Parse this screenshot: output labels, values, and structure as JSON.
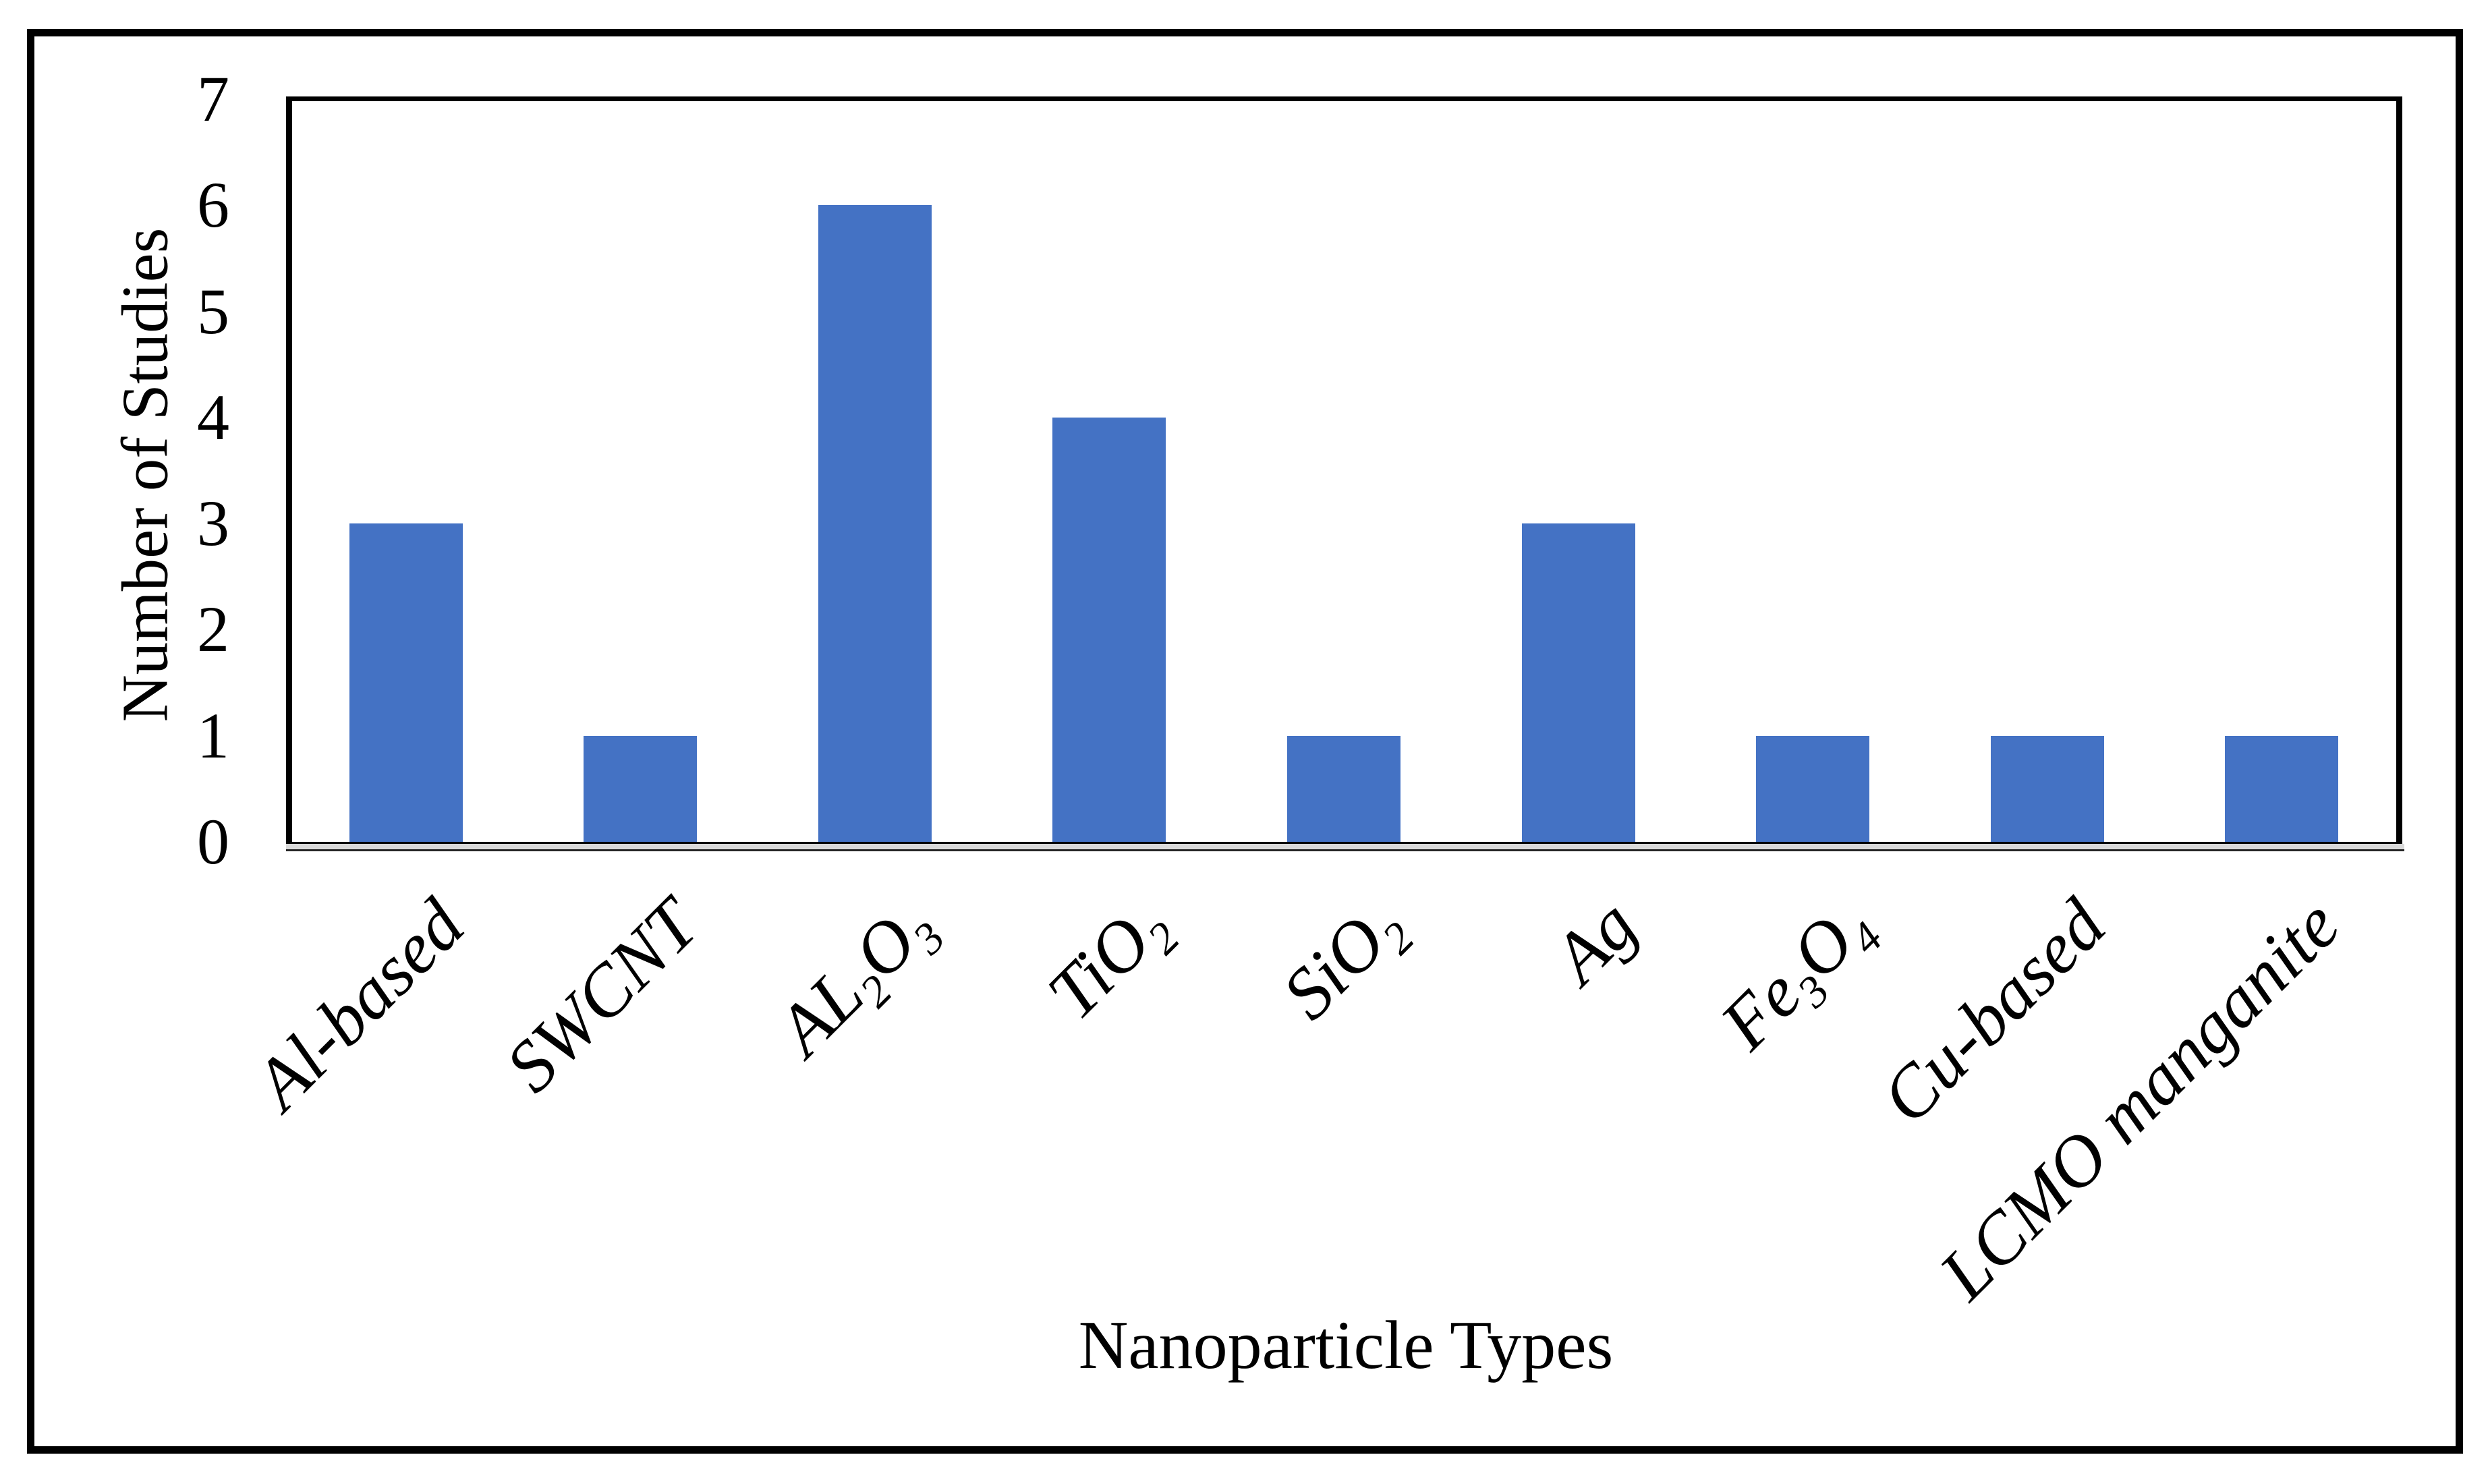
{
  "chart_data": {
    "type": "bar",
    "title": "",
    "xlabel": "Nanoparticle Types",
    "ylabel": "Number of Studies",
    "categories": [
      "Al-based",
      "SWCNT",
      "AL₂O₃",
      "TiO₂",
      "SiO₂",
      "Ag",
      "Fe₃O₄",
      "Cu-based",
      "LCMO manganite"
    ],
    "values": [
      3,
      1,
      6,
      4,
      1,
      3,
      1,
      1,
      1
    ],
    "ylim": [
      0,
      7
    ],
    "yticks": [
      0,
      1,
      2,
      3,
      4,
      5,
      6,
      7
    ],
    "grid": false,
    "legend": null,
    "bar_color": "#4472C4",
    "axis_band_color": "#D9D9D9",
    "frame_color": "#000000",
    "text_color": "#000000"
  }
}
